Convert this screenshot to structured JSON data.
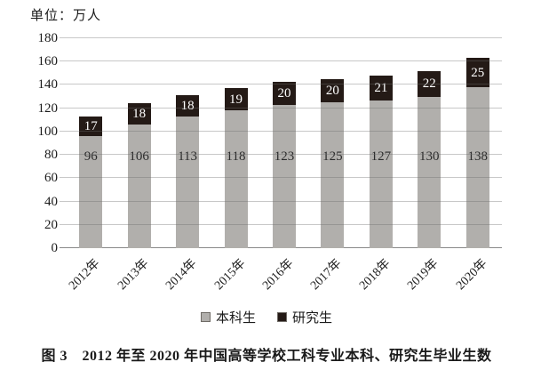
{
  "chart_data": {
    "type": "bar",
    "stacked": true,
    "unit_label": "单位：万人",
    "caption": "图 3　2012 年至 2020 年中国高等学校工科专业本科、研究生毕业生数",
    "categories": [
      "2012年",
      "2013年",
      "2014年",
      "2015年",
      "2016年",
      "2017年",
      "2018年",
      "2019年",
      "2020年"
    ],
    "series": [
      {
        "name": "本科生",
        "color": "#b1afac",
        "label_color": "#2b2b2b",
        "values": [
          96,
          106,
          113,
          118,
          123,
          125,
          127,
          130,
          138
        ]
      },
      {
        "name": "研究生",
        "color": "#241a16",
        "label_color": "#ffffff",
        "values": [
          17,
          18,
          18,
          19,
          20,
          20,
          21,
          22,
          25
        ]
      }
    ],
    "ylim": [
      0,
      180
    ],
    "yticks": [
      0,
      20,
      40,
      60,
      80,
      100,
      120,
      140,
      160,
      180
    ],
    "grid": "horizontal",
    "legend_position": "bottom"
  }
}
